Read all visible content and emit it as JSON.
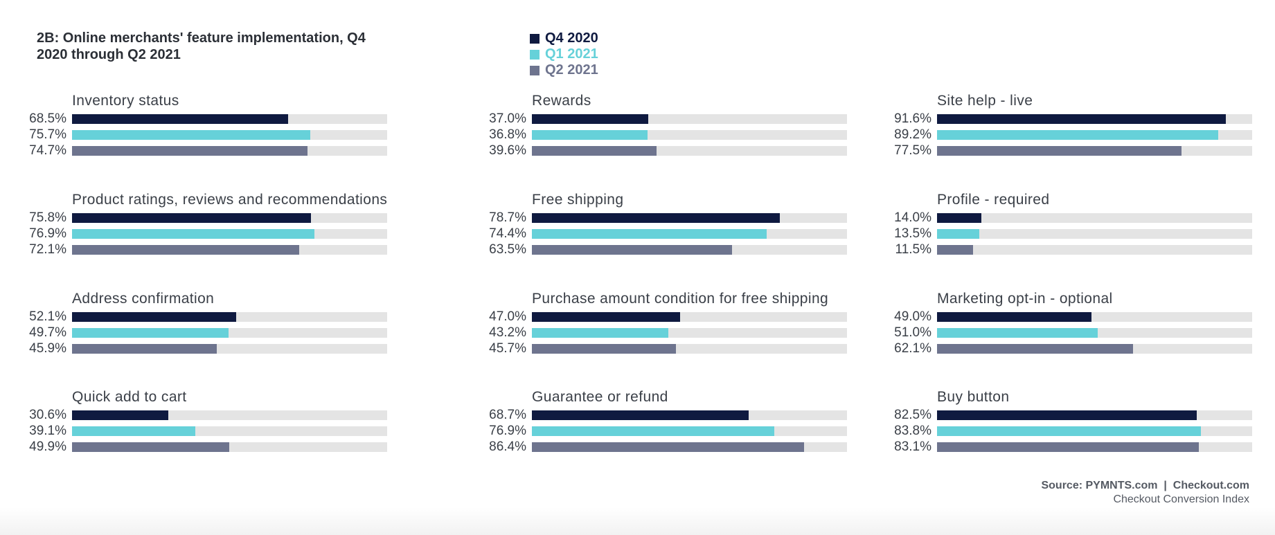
{
  "title": "2B: Online merchants' feature implementation, Q4 2020 through Q2 2021",
  "legend": [
    {
      "label": "Q4 2020",
      "color": "#0f1a40"
    },
    {
      "label": "Q1 2021",
      "color": "#66d1d9"
    },
    {
      "label": "Q2 2021",
      "color": "#6e748e"
    }
  ],
  "chart_data": {
    "type": "bar",
    "orientation": "horizontal",
    "title": "2B: Online merchants' feature implementation, Q4 2020 through Q2 2021",
    "xlim": [
      0,
      100
    ],
    "unit": "%",
    "series_names": [
      "Q4 2020",
      "Q1 2021",
      "Q2 2021"
    ],
    "categories": [
      {
        "label": "Inventory status",
        "values": [
          68.5,
          75.7,
          74.7
        ],
        "display": [
          "68.5%",
          "75.7%",
          "74.7%"
        ]
      },
      {
        "label": "Product ratings, reviews and recommendations",
        "values": [
          75.8,
          76.9,
          72.1
        ],
        "display": [
          "75.8%",
          "76.9%",
          "72.1%"
        ]
      },
      {
        "label": "Address confirmation",
        "values": [
          52.1,
          49.7,
          45.9
        ],
        "display": [
          "52.1%",
          "49.7%",
          "45.9%"
        ]
      },
      {
        "label": "Quick add to cart",
        "values": [
          30.6,
          39.1,
          49.9
        ],
        "display": [
          "30.6%",
          "39.1%",
          "49.9%"
        ]
      },
      {
        "label": "Rewards",
        "values": [
          37.0,
          36.8,
          39.6
        ],
        "display": [
          "37.0%",
          "36.8%",
          "39.6%"
        ]
      },
      {
        "label": "Free shipping",
        "values": [
          78.7,
          74.4,
          63.5
        ],
        "display": [
          "78.7%",
          "74.4%",
          "63.5%"
        ]
      },
      {
        "label": "Purchase amount condition for free shipping",
        "values": [
          47.0,
          43.2,
          45.7
        ],
        "display": [
          "47.0%",
          "43.2%",
          "45.7%"
        ]
      },
      {
        "label": "Guarantee or refund",
        "values": [
          68.7,
          76.9,
          86.4
        ],
        "display": [
          "68.7%",
          "76.9%",
          "86.4%"
        ]
      },
      {
        "label": "Site help - live",
        "values": [
          91.6,
          89.2,
          77.5
        ],
        "display": [
          "91.6%",
          "89.2%",
          "77.5%"
        ]
      },
      {
        "label": "Profile - required",
        "values": [
          14.0,
          13.5,
          11.5
        ],
        "display": [
          "14.0%",
          "13.5%",
          "11.5%"
        ]
      },
      {
        "label": "Marketing opt-in - optional",
        "values": [
          49.0,
          51.0,
          62.1
        ],
        "display": [
          "49.0%",
          "51.0%",
          "62.1%"
        ]
      },
      {
        "label": "Buy button",
        "values": [
          82.5,
          83.8,
          83.1
        ],
        "display": [
          "82.5%",
          "83.8%",
          "83.1%"
        ]
      }
    ]
  },
  "source": {
    "main": "Source: PYMNTS.com  |  Checkout.com",
    "sub": "Checkout Conversion Index"
  }
}
